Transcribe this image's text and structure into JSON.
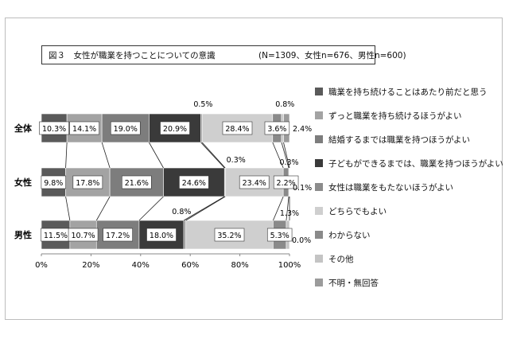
{
  "title_box": {
    "title": "図３　女性が職業を持つことについての意識",
    "sample": "(N=1309、女性n=676、男性n=600)"
  },
  "chart_data": {
    "type": "bar",
    "orientation": "horizontal-stacked-100",
    "categories": [
      "全体",
      "女性",
      "男性"
    ],
    "xlim": [
      0,
      100
    ],
    "xticks": [
      "0%",
      "20%",
      "40%",
      "60%",
      "80%",
      "100%"
    ],
    "series": [
      {
        "name": "職業を持ち続けることはあたり前だと思う",
        "values": [
          10.3,
          9.8,
          11.5
        ],
        "color": "#5a5a5a"
      },
      {
        "name": "ずっと職業を持ち続けるほうがよい",
        "values": [
          14.1,
          17.8,
          10.7
        ],
        "color": "#a3a3a3"
      },
      {
        "name": "結婚するまでは職業を持つほうがよい",
        "values": [
          19.0,
          21.6,
          17.2
        ],
        "color": "#7d7d7d"
      },
      {
        "name": "子どもができるまでは、職業を持つほうがよい",
        "values": [
          20.9,
          24.6,
          18.0
        ],
        "color": "#3a3a3a"
      },
      {
        "name": "女性は職業をもたないほうがよい",
        "values": [
          0.5,
          0.3,
          0.8
        ],
        "color": "#8c8c8c"
      },
      {
        "name": "どちらでもよい",
        "values": [
          28.4,
          23.4,
          35.2
        ],
        "color": "#cfcfcf"
      },
      {
        "name": "わからない",
        "values": [
          3.6,
          2.2,
          5.3
        ],
        "color": "#8a8a8a"
      },
      {
        "name": "その他",
        "values": [
          0.8,
          0.3,
          1.3
        ],
        "color": "#c4c4c4"
      },
      {
        "name": "不明・無回答",
        "values": [
          2.4,
          0.1,
          0.0
        ],
        "color": "#9b9b9b"
      }
    ],
    "labels": [
      [
        "10.3%",
        "14.1%",
        "19.0%",
        "20.9%",
        "0.5%",
        "28.4%",
        "3.6%",
        "0.8%",
        "2.4%"
      ],
      [
        "9.8%",
        "17.8%",
        "21.6%",
        "24.6%",
        "0.3%",
        "23.4%",
        "2.2%",
        "0.3%",
        "0.1%"
      ],
      [
        "11.5%",
        "10.7%",
        "17.2%",
        "18.0%",
        "0.8%",
        "35.2%",
        "5.3%",
        "1.3%",
        "0.0%"
      ]
    ],
    "series_lines": true,
    "grid": false,
    "legend_position": "right"
  }
}
